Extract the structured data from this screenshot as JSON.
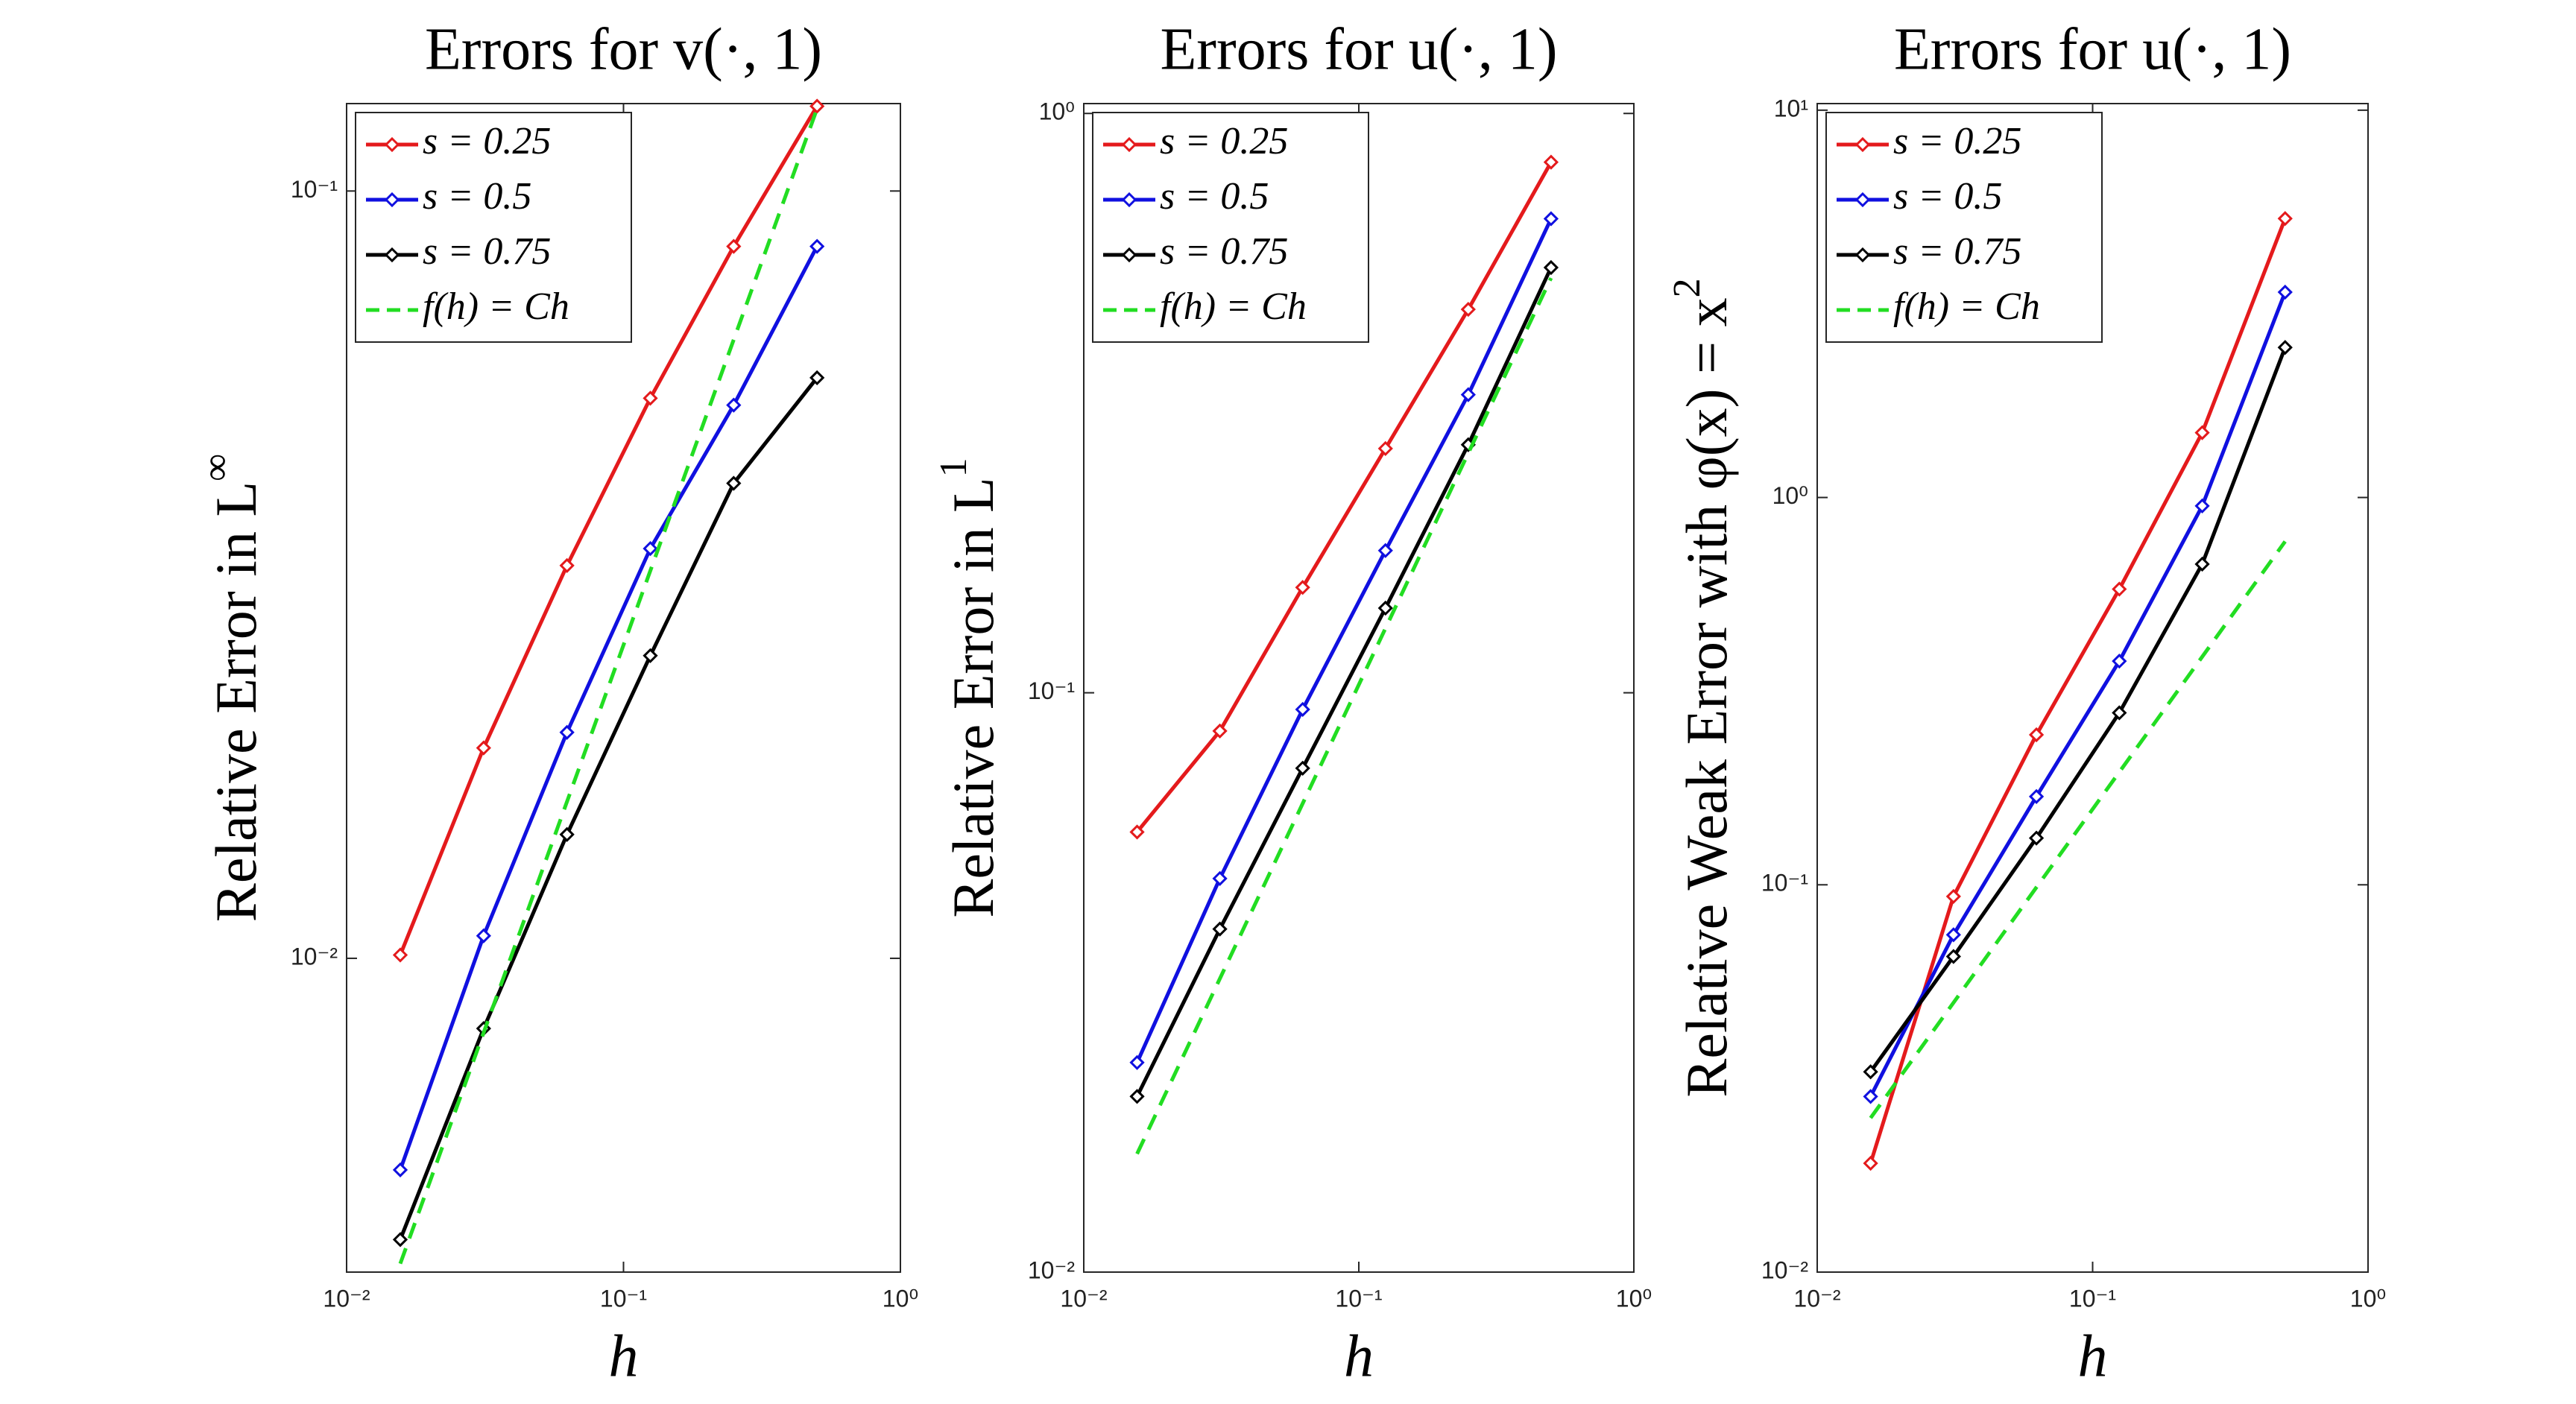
{
  "chart_data": [
    {
      "type": "line",
      "title": "Errors for v(·, 1)",
      "ylabel": "Relative Error in L",
      "ylabel_sup": "∞",
      "xlabel": "h",
      "xscale": "log",
      "yscale": "log",
      "legend": "northwest",
      "xlim": [
        0.01,
        1
      ],
      "ylim": [
        0.0039,
        0.13
      ],
      "xticks": [
        {
          "value": 0.01,
          "label": "10⁻²"
        },
        {
          "value": 0.1,
          "label": "10⁻¹"
        },
        {
          "value": 1,
          "label": "10⁰"
        }
      ],
      "yticks": [
        {
          "value": 0.01,
          "label": "10⁻²"
        },
        {
          "value": 0.1,
          "label": "10⁻¹"
        }
      ],
      "x": [
        0.015625,
        0.03125,
        0.0625,
        0.125,
        0.25,
        0.5
      ],
      "series": [
        {
          "name": "s = 0.25",
          "color": "#e41a1c",
          "values": [
            0.0101,
            0.0188,
            0.0325,
            0.0537,
            0.0847,
            0.129
          ]
        },
        {
          "name": "s = 0.5",
          "color": "#1010e0",
          "values": [
            0.0053,
            0.0107,
            0.0197,
            0.0342,
            0.0526,
            0.0847
          ]
        },
        {
          "name": "s = 0.75",
          "color": "#000000",
          "values": [
            0.0043,
            0.0081,
            0.0145,
            0.0248,
            0.0416,
            0.0571
          ]
        },
        {
          "name": "f(h) = Ch",
          "color": "#22dd22",
          "dashed": true,
          "x": [
            0.015625,
            0.5
          ],
          "values": [
            0.004,
            0.128
          ]
        }
      ]
    },
    {
      "type": "line",
      "title": "Errors for u(·, 1)",
      "ylabel": "Relative Error in L",
      "ylabel_sup": "1",
      "xlabel": "h",
      "xscale": "log",
      "yscale": "log",
      "legend": "northwest",
      "xlim": [
        0.01,
        1
      ],
      "ylim": [
        0.01,
        1.04
      ],
      "xticks": [
        {
          "value": 0.01,
          "label": "10⁻²"
        },
        {
          "value": 0.1,
          "label": "10⁻¹"
        },
        {
          "value": 1,
          "label": "10⁰"
        }
      ],
      "yticks": [
        {
          "value": 0.01,
          "label": "10⁻²"
        },
        {
          "value": 0.1,
          "label": "10⁻¹"
        },
        {
          "value": 1,
          "label": "10⁰"
        }
      ],
      "x": [
        0.015625,
        0.03125,
        0.0625,
        0.125,
        0.25,
        0.5
      ],
      "series": [
        {
          "name": "s = 0.25",
          "color": "#e41a1c",
          "values": [
            0.0575,
            0.0859,
            0.152,
            0.264,
            0.459,
            0.824
          ]
        },
        {
          "name": "s = 0.5",
          "color": "#1010e0",
          "values": [
            0.023,
            0.0478,
            0.0936,
            0.176,
            0.327,
            0.658
          ]
        },
        {
          "name": "s = 0.75",
          "color": "#000000",
          "values": [
            0.0201,
            0.0391,
            0.0741,
            0.14,
            0.268,
            0.542
          ]
        },
        {
          "name": "f(h) = Ch",
          "color": "#22dd22",
          "dashed": true,
          "x": [
            0.015625,
            0.5
          ],
          "values": [
            0.016,
            0.52
          ]
        }
      ]
    },
    {
      "type": "line",
      "title": "Errors for u(·, 1)",
      "ylabel": "Relative Weak Error with φ(x) = x",
      "ylabel_sup": "2",
      "xlabel": "h",
      "xscale": "log",
      "yscale": "log",
      "legend": "northwest",
      "xlim": [
        0.01,
        1
      ],
      "ylim": [
        0.01,
        10.4
      ],
      "xticks": [
        {
          "value": 0.01,
          "label": "10⁻²"
        },
        {
          "value": 0.1,
          "label": "10⁻¹"
        },
        {
          "value": 1,
          "label": "10⁰"
        }
      ],
      "yticks": [
        {
          "value": 0.01,
          "label": "10⁻²"
        },
        {
          "value": 0.1,
          "label": "10⁻¹"
        },
        {
          "value": 1,
          "label": "10⁰"
        },
        {
          "value": 10,
          "label": "10¹"
        }
      ],
      "x": [
        0.015625,
        0.03125,
        0.0625,
        0.125,
        0.25,
        0.5
      ],
      "series": [
        {
          "name": "s = 0.25",
          "color": "#e41a1c",
          "values": [
            0.0191,
            0.0933,
            0.244,
            0.58,
            1.47,
            5.25
          ]
        },
        {
          "name": "s = 0.5",
          "color": "#1010e0",
          "values": [
            0.0284,
            0.0743,
            0.169,
            0.378,
            0.951,
            3.39
          ]
        },
        {
          "name": "s = 0.75",
          "color": "#000000",
          "values": [
            0.0329,
            0.0653,
            0.132,
            0.278,
            0.673,
            2.44
          ]
        },
        {
          "name": "f(h) = Ch",
          "color": "#22dd22",
          "dashed": true,
          "x": [
            0.015625,
            0.5
          ],
          "values": [
            0.025,
            0.77
          ]
        }
      ]
    }
  ]
}
